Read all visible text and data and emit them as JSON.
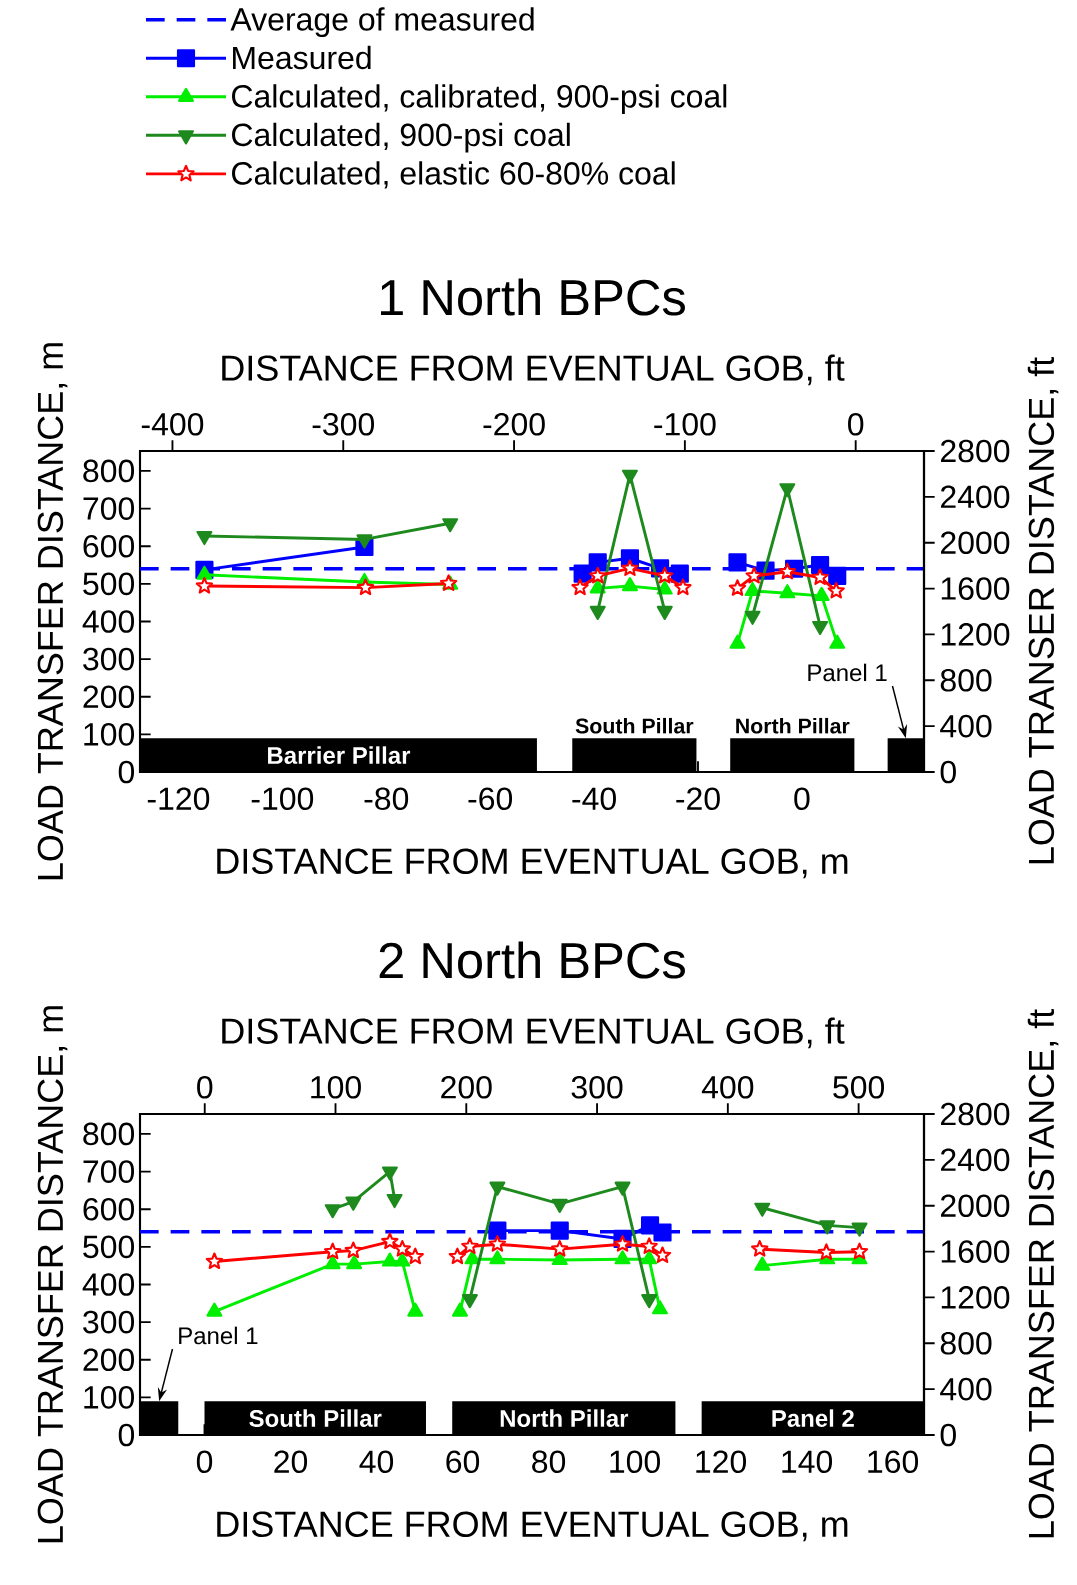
{
  "chart_data": [
    {
      "type": "line",
      "title": "1 North BPCs",
      "xlabel": "DISTANCE FROM EVENTUAL GOB, m",
      "x2label": "DISTANCE FROM EVENTUAL GOB, ft",
      "ylabel": "LOAD TRANSFER DISTANCE, m",
      "y2label": "LOAD TRANSER DISTANCE, ft",
      "xlim": [
        -127.4,
        23.5
      ],
      "xticks": [
        -120,
        -100,
        -80,
        -60,
        -40,
        -20,
        0
      ],
      "x2lim": [
        -419,
        40
      ],
      "x2ticks": [
        -400,
        -300,
        -200,
        -100,
        0
      ],
      "ylim": [
        0,
        853
      ],
      "yticks": [
        0,
        100,
        200,
        300,
        400,
        500,
        600,
        700,
        800
      ],
      "y2lim": [
        0,
        2800
      ],
      "y2ticks": [
        0,
        400,
        800,
        1200,
        1600,
        2000,
        2400,
        2800
      ],
      "legend": "top",
      "ref_lines": [
        {
          "axis": "y",
          "value": 540,
          "label": "Average of measured",
          "color": "#0000ff",
          "line_style": "dashed"
        }
      ],
      "bands": [
        {
          "axis": "x",
          "from": -127.4,
          "to": -51,
          "label": "Barrier Pillar",
          "color": "#000000"
        },
        {
          "axis": "x",
          "from": -44.2,
          "to": -20.3,
          "label": "South Pillar",
          "color": "#000000"
        },
        {
          "axis": "x",
          "from": -13.8,
          "to": 10.1,
          "label": "North Pillar",
          "color": "#000000"
        },
        {
          "axis": "x",
          "from": 16.5,
          "to": 23.5,
          "label": "Panel 1",
          "color": "#000000"
        }
      ],
      "series": [
        {
          "name": "Measured",
          "color": "#0000ff",
          "marker": "square",
          "x": [
            -115,
            -84.2,
            -60,
            -42.2,
            -39.3,
            -33.1,
            -27.3,
            -23.5,
            -17,
            -12.4,
            -7,
            -1.5,
            3.5,
            6.8
          ],
          "values": [
            537,
            598,
            null,
            527,
            557,
            568,
            541,
            527,
            null,
            557,
            535,
            540,
            550,
            521
          ]
        },
        {
          "name": "Calculated, calibrated, 900-psi coal",
          "color": "#00ee00",
          "marker": "triangle",
          "x": [
            -115,
            -84.2,
            -67.7,
            -60,
            -39.3,
            -33.1,
            -26.4,
            -17,
            -12.4,
            -9.5,
            -2.8,
            3.8,
            6.8
          ],
          "values": [
            524,
            505,
            498,
            null,
            488,
            494,
            485,
            null,
            341,
            481,
            475,
            468,
            341
          ]
        },
        {
          "name": "Calculated, 900-psi coal",
          "color": "#1e8a1e",
          "marker": "triangle down",
          "x": [
            -115,
            -84.2,
            -67.7,
            -60,
            -39.3,
            -33.1,
            -26.4,
            -17,
            -9.5,
            -2.8,
            3.5
          ],
          "values": [
            627,
            618,
            661,
            null,
            428,
            790,
            428,
            null,
            415,
            754,
            388
          ]
        },
        {
          "name": "Calculated, elastic 60-80% coal",
          "color": "#ff0000",
          "marker": "star",
          "x": [
            -115,
            -84,
            -68,
            -60,
            -42.7,
            -39.3,
            -33.1,
            -26.4,
            -22.9,
            -17,
            -12.4,
            -9.2,
            -2.8,
            3.5,
            6.6
          ],
          "values": [
            494,
            490,
            501,
            null,
            490,
            521,
            541,
            521,
            490,
            null,
            488,
            521,
            532,
            517,
            481
          ]
        }
      ]
    },
    {
      "type": "line",
      "title": "2 North BPCs",
      "xlabel": "DISTANCE FROM EVENTUAL GOB, m",
      "x2label": "DISTANCE FROM EVENTUAL GOB, ft",
      "ylabel": "LOAD TRANSFER DISTANCE, m",
      "y2label": "LOAD TRANSFER DISTANCE, ft",
      "xlim": [
        -15,
        167.3
      ],
      "xticks": [
        0,
        20,
        40,
        60,
        80,
        100,
        120,
        140,
        160
      ],
      "x2lim": [
        -49.5,
        550
      ],
      "x2ticks": [
        0,
        100,
        200,
        300,
        400,
        500
      ],
      "ylim": [
        0,
        853
      ],
      "yticks": [
        0,
        100,
        200,
        300,
        400,
        500,
        600,
        700,
        800
      ],
      "y2lim": [
        0,
        2800
      ],
      "y2ticks": [
        0,
        400,
        800,
        1200,
        1600,
        2000,
        2400,
        2800
      ],
      "ref_lines": [
        {
          "axis": "y",
          "value": 540,
          "color": "#0000ff",
          "line_style": "dashed"
        }
      ],
      "bands": [
        {
          "axis": "x",
          "from": -15,
          "to": -6.1,
          "label": "Panel 1",
          "color": "#000000"
        },
        {
          "axis": "x",
          "from": 0,
          "to": 51.5,
          "label": "South Pillar",
          "color": "#000000"
        },
        {
          "axis": "x",
          "from": 57.6,
          "to": 109.5,
          "label": "North Pillar",
          "color": "#000000"
        },
        {
          "axis": "x",
          "from": 115.6,
          "to": 167.3,
          "label": "Panel 2",
          "color": "#000000"
        }
      ],
      "series": [
        {
          "color": "#0000ff",
          "marker": "square",
          "x": [
            68.1,
            82.6,
            97.2,
            103.6,
            106.5
          ],
          "values": [
            543,
            543,
            521,
            557,
            538
          ]
        },
        {
          "color": "#00ee00",
          "marker": "triangle",
          "x": [
            2.3,
            29.8,
            34.8,
            43.1,
            46,
            49,
            54,
            59.4,
            62.3,
            68.1,
            82.6,
            97.2,
            103.4,
            105.9,
            112,
            129.7,
            144.8,
            152.3
          ],
          "values": [
            328,
            454,
            454,
            461,
            461,
            328,
            null,
            328,
            467,
            467,
            465,
            467,
            467,
            334,
            null,
            450,
            467,
            467
          ]
        },
        {
          "color": "#1e8a1e",
          "marker": "triangle down",
          "x": [
            29.8,
            34.6,
            43.1,
            44.2,
            54,
            61.7,
            68.1,
            82.6,
            97.2,
            103.4,
            112,
            129.7,
            144.8,
            152.3
          ],
          "values": [
            600,
            620,
            700,
            627,
            null,
            361,
            660,
            614,
            660,
            361,
            null,
            604,
            557,
            551
          ]
        },
        {
          "color": "#ff0000",
          "marker": "star",
          "x": [
            2.3,
            29.8,
            34.6,
            43.1,
            46,
            49,
            54,
            58.8,
            61.7,
            68.1,
            82.6,
            97.2,
            103.4,
            106.5,
            112,
            129.1,
            144.6,
            152.3
          ],
          "values": [
            461,
            487,
            490,
            514,
            494,
            474,
            null,
            474,
            501,
            507,
            494,
            507,
            501,
            477,
            null,
            494,
            485,
            487
          ]
        }
      ]
    }
  ]
}
